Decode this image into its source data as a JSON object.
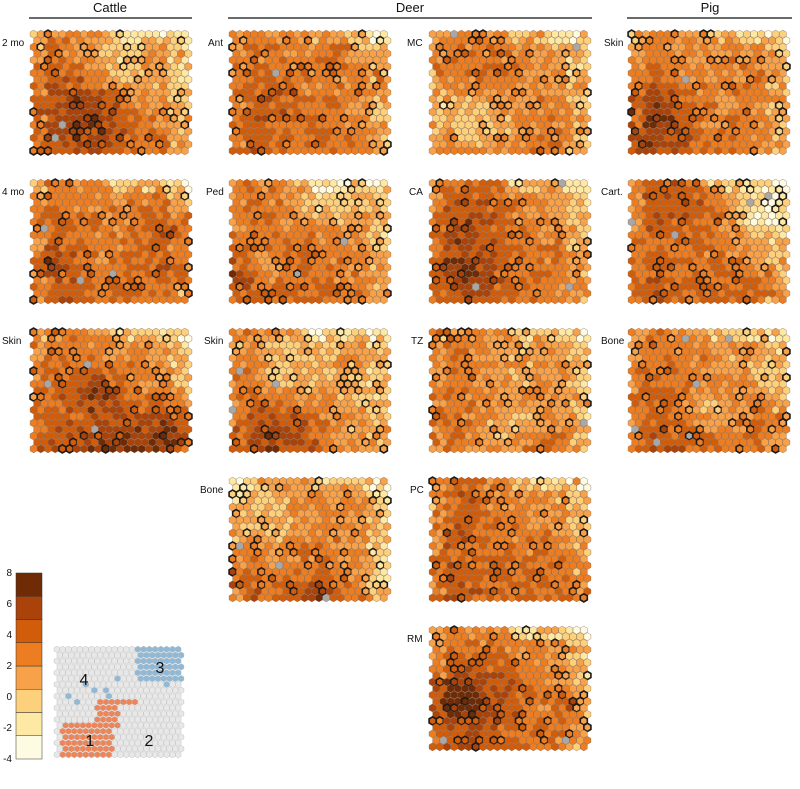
{
  "groups": [
    {
      "title": "Cattle"
    },
    {
      "title": "Deer"
    },
    {
      "title": "Pig"
    }
  ],
  "columns": [
    {
      "group": 0,
      "panels": [
        {
          "label": "2 mo",
          "seed": 11
        },
        {
          "label": "4 mo",
          "seed": 23
        },
        {
          "label": "Skin",
          "seed": 37
        }
      ]
    },
    {
      "group": 1,
      "panels": [
        {
          "label": "Ant",
          "seed": 41
        },
        {
          "label": "Ped",
          "seed": 53
        },
        {
          "label": "Skin",
          "seed": 67
        },
        {
          "label": "Bone",
          "seed": 71
        }
      ]
    },
    {
      "group": 1,
      "panels": [
        {
          "label": "MC",
          "seed": 83
        },
        {
          "label": "CA",
          "seed": 97
        },
        {
          "label": "TZ",
          "seed": 101
        },
        {
          "label": "PC",
          "seed": 113
        },
        {
          "label": "RM",
          "seed": 127
        }
      ]
    },
    {
      "group": 2,
      "panels": [
        {
          "label": "Skin",
          "seed": 131
        },
        {
          "label": "Cart.",
          "seed": 149
        },
        {
          "label": "Bone",
          "seed": 151
        }
      ]
    }
  ],
  "legend": {
    "ticks": [
      "8",
      "6",
      "4",
      "2",
      "0",
      "-2",
      "-4"
    ],
    "colors": [
      "#fefbe3",
      "#fde9a4",
      "#fdd07c",
      "#f7a148",
      "#ec7d21",
      "#d15d0b",
      "#a9430a",
      "#6e2b06"
    ]
  },
  "cluster_map": {
    "labels": [
      "1",
      "2",
      "3",
      "4"
    ],
    "colors": {
      "1": "#ed8559",
      "2": "#e8e8e8",
      "3": "#8fb9d6",
      "4": "#e8e8e8"
    }
  }
}
